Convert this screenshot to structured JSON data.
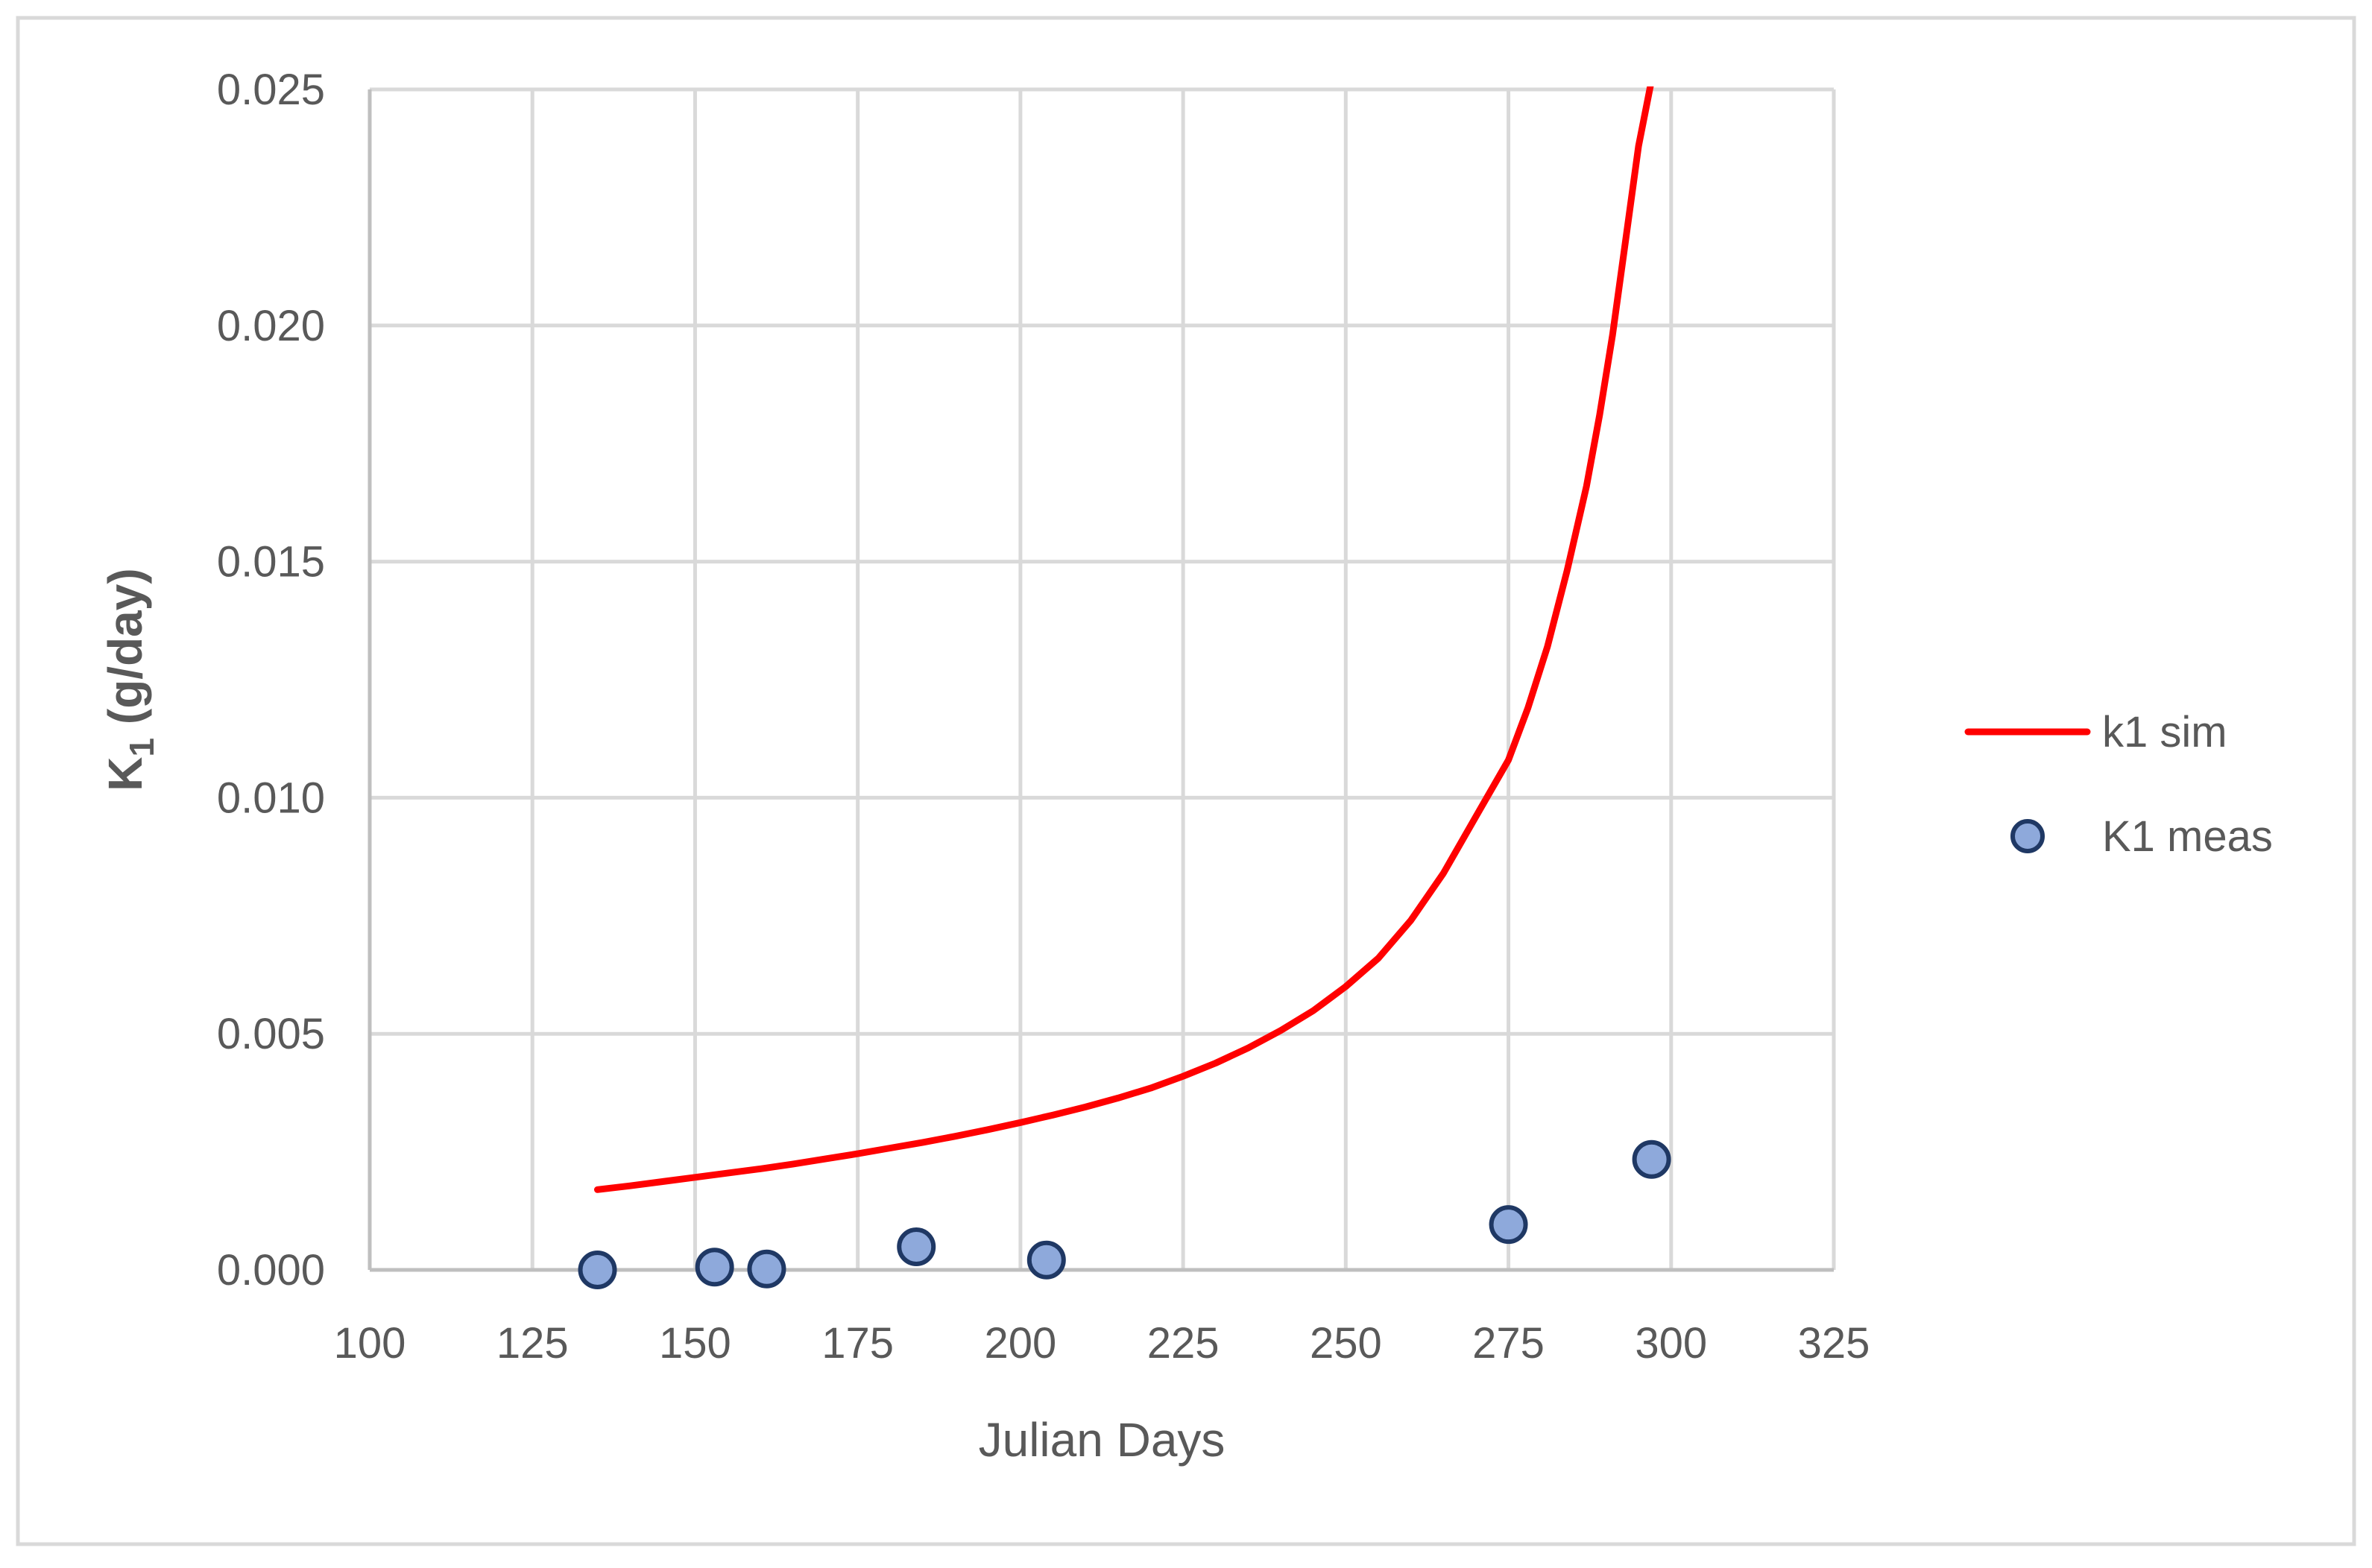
{
  "chart_data": {
    "type": "scatter",
    "title": "",
    "xlabel": "Julian Days",
    "ylabel": {
      "main": "K",
      "subscript": "1",
      "suffix": " (g/day)"
    },
    "xlim": [
      100,
      325
    ],
    "ylim": [
      0.0,
      0.025
    ],
    "x_ticks": [
      100,
      125,
      150,
      175,
      200,
      225,
      250,
      275,
      300,
      325
    ],
    "x_tick_labels": [
      "100",
      "125",
      "150",
      "175",
      "200",
      "225",
      "250",
      "275",
      "300",
      "325"
    ],
    "y_ticks": [
      0.0,
      0.005,
      0.01,
      0.015,
      0.02,
      0.025
    ],
    "y_tick_labels": [
      "0.000",
      "0.005",
      "0.010",
      "0.015",
      "0.020",
      "0.025"
    ],
    "grid": true,
    "legend_position": "right",
    "series": [
      {
        "name": "k1 sim",
        "kind": "line",
        "color": "#ff0000",
        "x": [
          135,
          140,
          145,
          150,
          155,
          160,
          165,
          170,
          175,
          180,
          185,
          190,
          195,
          200,
          205,
          210,
          215,
          220,
          225,
          230,
          235,
          240,
          245,
          250,
          255,
          260,
          265,
          270,
          275,
          278,
          281,
          284,
          287,
          289,
          291,
          293,
          295,
          297
        ],
        "y": [
          0.0017,
          0.00178,
          0.00187,
          0.00196,
          0.00205,
          0.00214,
          0.00224,
          0.00235,
          0.00246,
          0.00258,
          0.0027,
          0.00283,
          0.00297,
          0.00312,
          0.00328,
          0.00345,
          0.00364,
          0.00385,
          0.0041,
          0.00438,
          0.0047,
          0.00507,
          0.00549,
          0.006,
          0.0066,
          0.0074,
          0.0084,
          0.0096,
          0.0108,
          0.0119,
          0.0132,
          0.0148,
          0.0166,
          0.0181,
          0.0198,
          0.0218,
          0.0238,
          0.0252
        ]
      },
      {
        "name": "K1 meas",
        "kind": "scatter",
        "color": "#8ea9db",
        "edge_color": "#1f3864",
        "x": [
          135,
          153,
          161,
          184,
          204,
          275,
          297
        ],
        "y": [
          0.0,
          6e-05,
          2e-05,
          0.00049,
          0.00021,
          0.00096,
          0.00234
        ]
      }
    ]
  }
}
